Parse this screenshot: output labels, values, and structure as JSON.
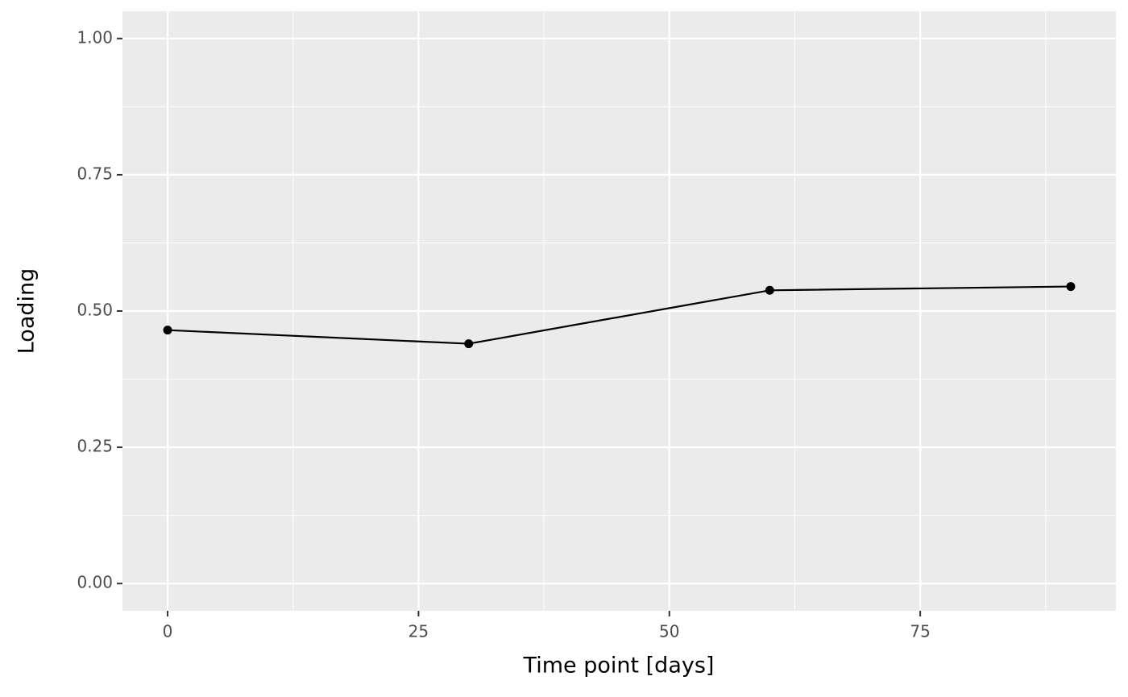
{
  "chart_data": {
    "type": "line",
    "x_label": "Time point [days]",
    "y_label": "Loading",
    "x": [
      0,
      30,
      60,
      90
    ],
    "series": [
      {
        "color": "#000000",
        "values": [
          0.465,
          0.44,
          0.538,
          0.545
        ]
      }
    ],
    "xlim": [
      -4.5,
      94.5
    ],
    "xticks": [
      0,
      25,
      50,
      75
    ],
    "ylim": [
      -0.05,
      1.05
    ],
    "yticks": [
      {
        "value": 0,
        "label": "0.00"
      },
      {
        "value": 0.25,
        "label": "0.25"
      },
      {
        "value": 0.5,
        "label": "0.50"
      },
      {
        "value": 0.75,
        "label": "0.75"
      },
      {
        "value": 1,
        "label": "1.00"
      }
    ],
    "grid": true,
    "minor_grid": true
  }
}
